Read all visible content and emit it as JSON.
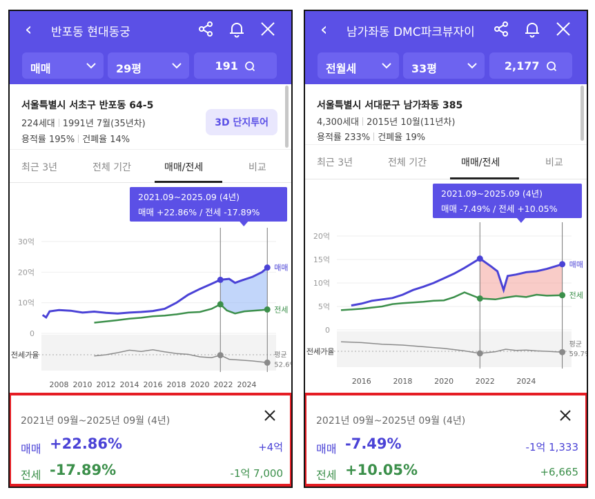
{
  "colors": {
    "brand": "#5b50e6",
    "sale": "#4a42d6",
    "jeonse": "#3b8f4a",
    "highlight_red": "#e51c23"
  },
  "panels": [
    {
      "header": {
        "title": "반포동 현대동궁",
        "icons": [
          "back-icon",
          "share-icon",
          "bell-icon",
          "close-icon"
        ]
      },
      "filters": {
        "type": "매매",
        "size": "29평",
        "count": "191"
      },
      "info": {
        "address": "서울특별시 서초구 반포동 64-5",
        "households": "224세대",
        "built": "1991년 7월(35년차)",
        "far": "용적률 195%",
        "bcr": "건폐율 14%",
        "tour": "3D 단지투어"
      },
      "tabs": [
        "최근 3년",
        "전체 기간",
        "매매/전세",
        "비교"
      ],
      "active_tab": 2,
      "tooltip": {
        "range": "2021.09~2025.09 (4년)",
        "text": "매매 +22.86%  /  전세 -17.89%"
      },
      "chart_data": {
        "type": "line",
        "x_range": [
          2006.5,
          2026.5
        ],
        "xticks": [
          "2008",
          "2010",
          "2012",
          "2014",
          "2016",
          "2018",
          "2020",
          "2022",
          "2024"
        ],
        "y_range": [
          0,
          30
        ],
        "yticks": [
          "0",
          "10억",
          "20억",
          "30억"
        ],
        "ratio_label": "전세가율",
        "avg_label": "평균",
        "avg_value": "52.6%",
        "legend": [
          "매매",
          "전세"
        ],
        "selection": [
          2021.75,
          2025.75
        ],
        "series": [
          {
            "name": "매매",
            "points": [
              [
                2006.6,
                6
              ],
              [
                2006.9,
                5.2
              ],
              [
                2007.2,
                7.2
              ],
              [
                2008,
                7.6
              ],
              [
                2009,
                7.4
              ],
              [
                2010,
                6.8
              ],
              [
                2011,
                7.1
              ],
              [
                2012,
                6.7
              ],
              [
                2013,
                6.5
              ],
              [
                2014,
                6.8
              ],
              [
                2015,
                7.0
              ],
              [
                2016,
                7.3
              ],
              [
                2017,
                8.0
              ],
              [
                2018,
                10.0
              ],
              [
                2019,
                12.6
              ],
              [
                2020,
                14.5
              ],
              [
                2021,
                16.2
              ],
              [
                2021.75,
                17.5
              ],
              [
                2022.5,
                17.8
              ],
              [
                2023,
                16.5
              ],
              [
                2023.5,
                17.2
              ],
              [
                2024.5,
                18.5
              ],
              [
                2025.3,
                20
              ],
              [
                2025.75,
                21.5
              ]
            ]
          },
          {
            "name": "전세",
            "points": [
              [
                2011,
                3.5
              ],
              [
                2012,
                3.9
              ],
              [
                2013,
                4.3
              ],
              [
                2014,
                4.8
              ],
              [
                2015,
                5.1
              ],
              [
                2016,
                5.6
              ],
              [
                2017,
                5.8
              ],
              [
                2018,
                6.2
              ],
              [
                2019,
                6.8
              ],
              [
                2020,
                7.0
              ],
              [
                2021,
                8.0
              ],
              [
                2021.75,
                9.5
              ],
              [
                2022.3,
                7.5
              ],
              [
                2023,
                6.5
              ],
              [
                2023.8,
                7.2
              ],
              [
                2024.5,
                7.4
              ],
              [
                2025.3,
                7.6
              ],
              [
                2025.75,
                7.8
              ]
            ]
          },
          {
            "name": "전세가율",
            "points": [
              [
                2011,
                52
              ],
              [
                2012,
                55
              ],
              [
                2013,
                60
              ],
              [
                2014,
                66
              ],
              [
                2015,
                63
              ],
              [
                2016,
                67
              ],
              [
                2017,
                62
              ],
              [
                2018,
                58
              ],
              [
                2019,
                56
              ],
              [
                2020,
                50
              ],
              [
                2021,
                48
              ],
              [
                2021.75,
                54
              ],
              [
                2022.5,
                44
              ],
              [
                2023.5,
                42
              ],
              [
                2024.5,
                40
              ],
              [
                2025.75,
                36
              ]
            ]
          }
        ]
      },
      "summary": {
        "range": "2021년 09월~2025년 09월 (4년)",
        "rows": [
          {
            "label": "매매",
            "pct": "+22.86%",
            "amount": "+4억"
          },
          {
            "label": "전세",
            "pct": "-17.89%",
            "amount": "-1억 7,000"
          }
        ]
      }
    },
    {
      "header": {
        "title": "남가좌동 DMC파크뷰자이",
        "icons": [
          "back-icon",
          "share-icon",
          "bell-icon",
          "close-icon"
        ]
      },
      "filters": {
        "type": "전월세",
        "size": "33평",
        "count": "2,177"
      },
      "info": {
        "address": "서울특별시 서대문구 남가좌동 385",
        "households": "4,300세대",
        "built": "2015년 10월(11년차)",
        "far": "용적률 233%",
        "bcr": "건폐율 19%",
        "tour": ""
      },
      "tabs": [
        "최근 3년",
        "전체 기간",
        "매매/전세",
        "비교"
      ],
      "active_tab": 2,
      "tooltip": {
        "range": "2021.09~2025.09 (4년)",
        "text": "매매 -7.49%  /  전세 +10.05%"
      },
      "chart_data": {
        "type": "line",
        "x_range": [
          2014.8,
          2026.2
        ],
        "xticks": [
          "2016",
          "2018",
          "2020",
          "2022",
          "2024"
        ],
        "y_range": [
          0,
          20
        ],
        "yticks": [
          "0",
          "5억",
          "10억",
          "15억",
          "20억"
        ],
        "ratio_label": "전세가율",
        "avg_label": "평균",
        "avg_value": "59.7%",
        "legend": [
          "매매",
          "전세"
        ],
        "selection": [
          2021.75,
          2025.75
        ],
        "series": [
          {
            "name": "매매",
            "points": [
              [
                2015.5,
                5.2
              ],
              [
                2016,
                5.6
              ],
              [
                2016.5,
                6.2
              ],
              [
                2017,
                6.5
              ],
              [
                2017.5,
                6.8
              ],
              [
                2018,
                7.5
              ],
              [
                2018.5,
                8.5
              ],
              [
                2019,
                9.2
              ],
              [
                2019.5,
                10.0
              ],
              [
                2020,
                11.0
              ],
              [
                2020.5,
                12.0
              ],
              [
                2021,
                13.2
              ],
              [
                2021.75,
                15.2
              ],
              [
                2022.3,
                13.5
              ],
              [
                2022.6,
                12.5
              ],
              [
                2022.9,
                8.5
              ],
              [
                2023.1,
                11.5
              ],
              [
                2023.5,
                11.8
              ],
              [
                2024,
                12.3
              ],
              [
                2024.5,
                12.5
              ],
              [
                2025,
                13
              ],
              [
                2025.75,
                14.0
              ]
            ]
          },
          {
            "name": "전세",
            "points": [
              [
                2015,
                4.2
              ],
              [
                2016,
                4.5
              ],
              [
                2017,
                5.0
              ],
              [
                2017.5,
                5.5
              ],
              [
                2018,
                5.7
              ],
              [
                2019,
                6.0
              ],
              [
                2019.5,
                6.2
              ],
              [
                2020,
                6.3
              ],
              [
                2020.5,
                7.0
              ],
              [
                2021,
                8.0
              ],
              [
                2021.75,
                6.7
              ],
              [
                2022.5,
                6.5
              ],
              [
                2023,
                6.9
              ],
              [
                2023.5,
                7.2
              ],
              [
                2024,
                7.0
              ],
              [
                2024.5,
                7.5
              ],
              [
                2025,
                7.3
              ],
              [
                2025.75,
                7.4
              ]
            ]
          },
          {
            "name": "전세가율",
            "points": [
              [
                2015,
                78
              ],
              [
                2016,
                76
              ],
              [
                2017,
                72
              ],
              [
                2018,
                70
              ],
              [
                2019,
                66
              ],
              [
                2020,
                62
              ],
              [
                2021,
                56
              ],
              [
                2021.75,
                50
              ],
              [
                2022.5,
                54
              ],
              [
                2023,
                60
              ],
              [
                2023.5,
                57
              ],
              [
                2024,
                58
              ],
              [
                2024.5,
                56
              ],
              [
                2025,
                55
              ],
              [
                2025.75,
                53
              ]
            ]
          }
        ]
      },
      "summary": {
        "range": "2021년 09월~2025년 09월 (4년)",
        "rows": [
          {
            "label": "매매",
            "pct": "-7.49%",
            "amount": "-1억 1,333"
          },
          {
            "label": "전세",
            "pct": "+10.05%",
            "amount": "+6,665"
          }
        ]
      }
    }
  ]
}
